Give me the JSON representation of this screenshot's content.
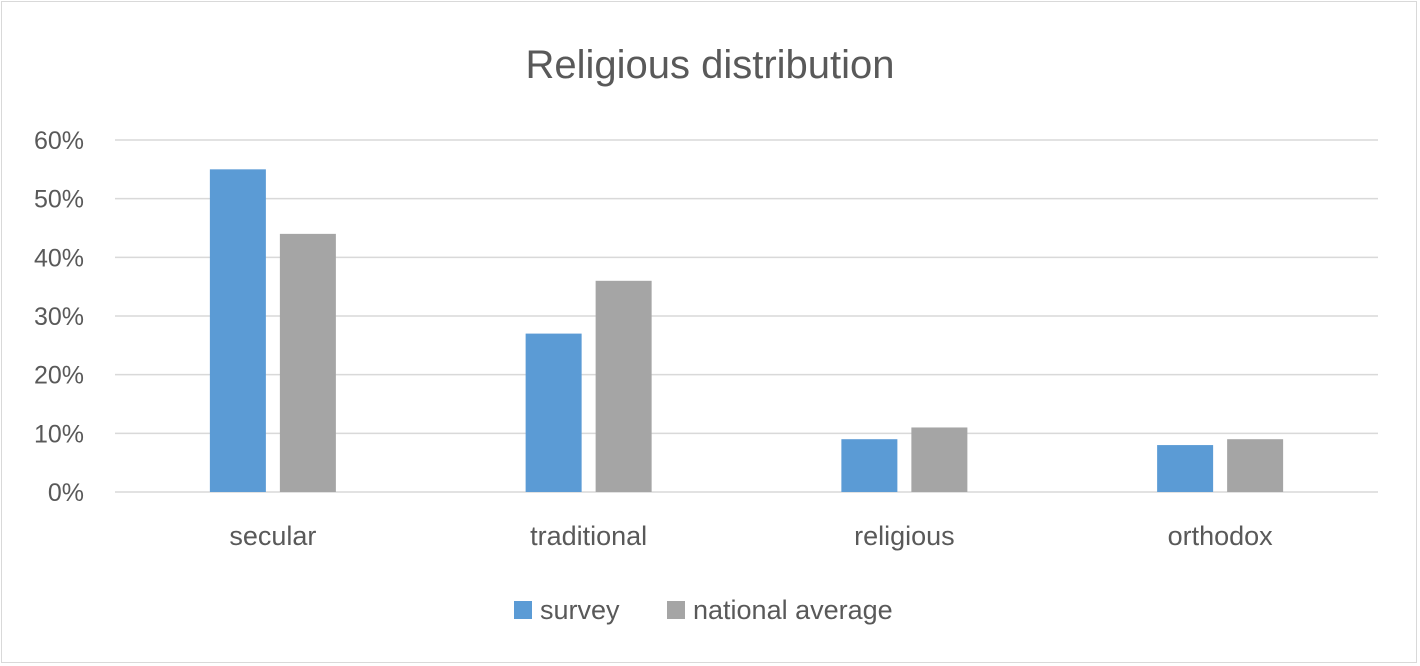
{
  "chart_data": {
    "type": "bar",
    "title": "Religious distribution",
    "xlabel": "",
    "ylabel": "",
    "categories": [
      "secular",
      "traditional",
      "religious",
      "orthodox"
    ],
    "series": [
      {
        "name": "survey",
        "values": [
          55,
          27,
          9,
          8
        ],
        "color": "#5b9bd5"
      },
      {
        "name": "national average",
        "values": [
          44,
          36,
          11,
          9
        ],
        "color": "#a5a5a5"
      }
    ],
    "ylim": [
      0,
      60
    ],
    "yticks": [
      0,
      10,
      20,
      30,
      40,
      50,
      60
    ],
    "ytick_labels": [
      "0%",
      "10%",
      "20%",
      "30%",
      "40%",
      "50%",
      "60%"
    ],
    "grid": true,
    "legend": "bottom"
  }
}
